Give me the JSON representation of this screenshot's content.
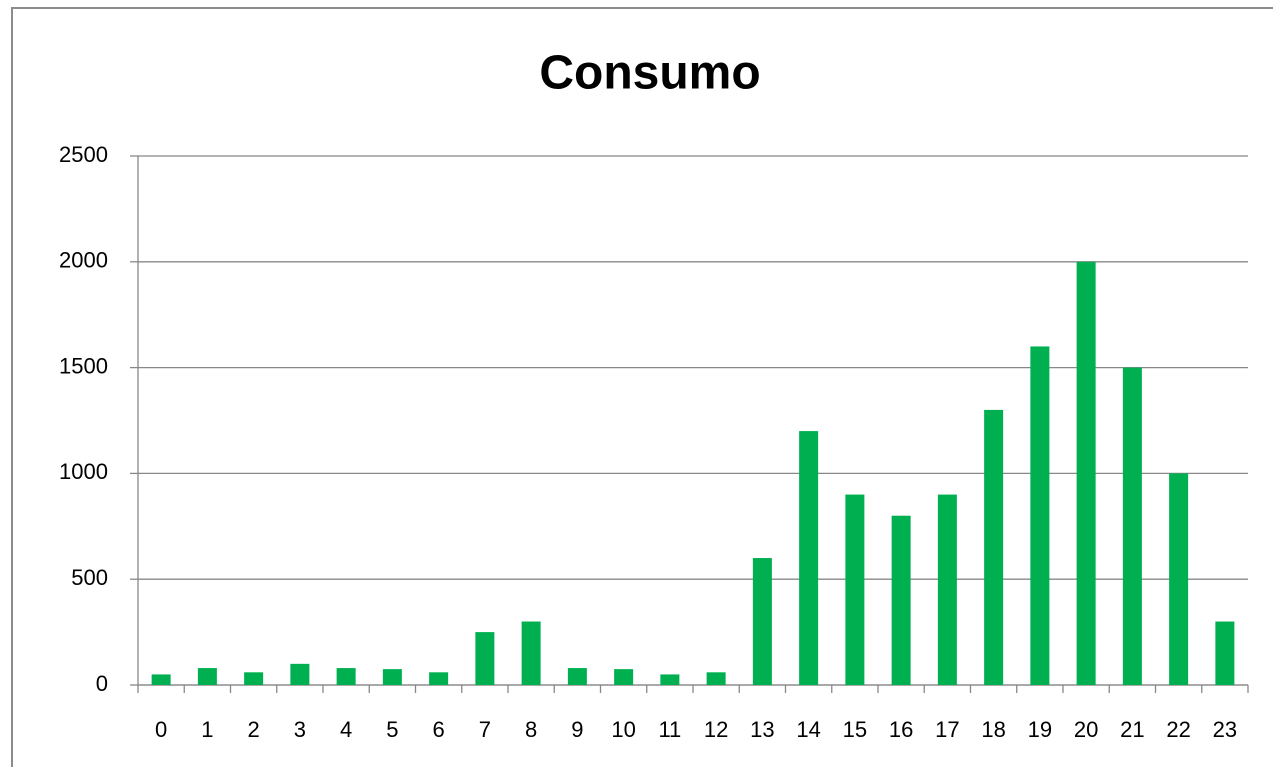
{
  "chart_data": {
    "type": "bar",
    "title": "Consumo",
    "categories": [
      "0",
      "1",
      "2",
      "3",
      "4",
      "5",
      "6",
      "7",
      "8",
      "9",
      "10",
      "11",
      "12",
      "13",
      "14",
      "15",
      "16",
      "17",
      "18",
      "19",
      "20",
      "21",
      "22",
      "23"
    ],
    "values": [
      50,
      80,
      60,
      100,
      80,
      75,
      60,
      250,
      300,
      80,
      75,
      50,
      60,
      600,
      1200,
      900,
      800,
      900,
      1300,
      1600,
      2000,
      1500,
      1000,
      300
    ],
    "color": "#00b050",
    "ylim": [
      0,
      2500
    ],
    "yticks": [
      0,
      500,
      1000,
      1500,
      2000,
      2500
    ],
    "grid": true
  }
}
